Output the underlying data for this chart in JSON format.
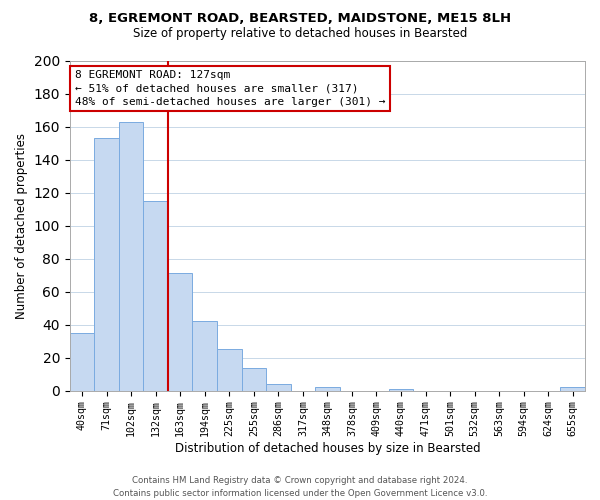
{
  "title1": "8, EGREMONT ROAD, BEARSTED, MAIDSTONE, ME15 8LH",
  "title2": "Size of property relative to detached houses in Bearsted",
  "xlabel": "Distribution of detached houses by size in Bearsted",
  "ylabel": "Number of detached properties",
  "bar_labels": [
    "40sqm",
    "71sqm",
    "102sqm",
    "132sqm",
    "163sqm",
    "194sqm",
    "225sqm",
    "255sqm",
    "286sqm",
    "317sqm",
    "348sqm",
    "378sqm",
    "409sqm",
    "440sqm",
    "471sqm",
    "501sqm",
    "532sqm",
    "563sqm",
    "594sqm",
    "624sqm",
    "655sqm"
  ],
  "bar_values": [
    35,
    153,
    163,
    115,
    71,
    42,
    25,
    14,
    4,
    0,
    2,
    0,
    0,
    1,
    0,
    0,
    0,
    0,
    0,
    0,
    2
  ],
  "bar_color": "#c6d9f1",
  "bar_edge_color": "#7aabe0",
  "vline_color": "#cc0000",
  "vline_x_idx": 3.5,
  "annotation_title": "8 EGREMONT ROAD: 127sqm",
  "annotation_line1": "← 51% of detached houses are smaller (317)",
  "annotation_line2": "48% of semi-detached houses are larger (301) →",
  "annotation_box_edge": "#cc0000",
  "ylim": [
    0,
    200
  ],
  "yticks": [
    0,
    20,
    40,
    60,
    80,
    100,
    120,
    140,
    160,
    180,
    200
  ],
  "footer1": "Contains HM Land Registry data © Crown copyright and database right 2024.",
  "footer2": "Contains public sector information licensed under the Open Government Licence v3.0."
}
